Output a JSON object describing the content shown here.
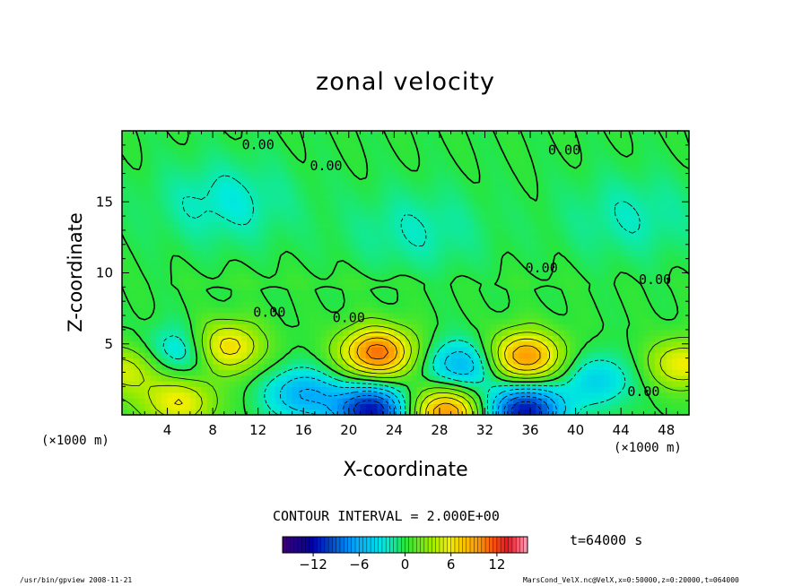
{
  "chart_data": {
    "type": "contour",
    "title": "zonal velocity",
    "xlabel": "X-coordinate",
    "ylabel": "Z-coordinate",
    "x_unit_label": "(×1000 m)",
    "xlim": [
      0,
      50
    ],
    "ylim": [
      0,
      20
    ],
    "x_ticks": [
      4,
      8,
      12,
      16,
      20,
      24,
      28,
      32,
      36,
      40,
      44,
      48
    ],
    "y_ticks": [
      5,
      10,
      15
    ],
    "contour_labels": [
      {
        "x": 12,
        "z": 19.0,
        "text": "0.00"
      },
      {
        "x": 18,
        "z": 17.5,
        "text": "0.00"
      },
      {
        "x": 39,
        "z": 18.6,
        "text": "0.00"
      },
      {
        "x": 37,
        "z": 10.3,
        "text": "0.00"
      },
      {
        "x": 47,
        "z": 9.5,
        "text": "0.00"
      },
      {
        "x": 13,
        "z": 7.2,
        "text": "0.00"
      },
      {
        "x": 20,
        "z": 6.8,
        "text": "0.00"
      },
      {
        "x": 46,
        "z": 1.6,
        "text": "0.00"
      }
    ],
    "contour_interval_label": "CONTOUR INTERVAL = 2.000E+00",
    "colorbar": {
      "range": [
        -16,
        16
      ],
      "tick_values": [
        -12,
        -6,
        0,
        6,
        12
      ],
      "tick_labels": [
        "−12",
        "−6",
        "0",
        "6",
        "12"
      ]
    },
    "features": [
      {
        "sign": "positive",
        "x": 9,
        "z": 4.8,
        "peak": 8
      },
      {
        "sign": "positive",
        "x": 22.5,
        "z": 4.4,
        "peak": 11
      },
      {
        "sign": "positive",
        "x": 35.5,
        "z": 4.1,
        "peak": 10
      },
      {
        "sign": "positive",
        "x": 5,
        "z": 0.9,
        "peak": 6
      },
      {
        "sign": "positive",
        "x": 28.5,
        "z": 0.2,
        "peak": 10
      },
      {
        "sign": "positive",
        "x": 49.5,
        "z": 3.6,
        "peak": 6
      },
      {
        "sign": "positive",
        "x": 0.3,
        "z": 3.2,
        "peak": 5
      },
      {
        "sign": "negative",
        "x": 22,
        "z": 0.3,
        "peak": -12
      },
      {
        "sign": "negative",
        "x": 35.5,
        "z": 0.3,
        "peak": -12
      },
      {
        "sign": "negative",
        "x": 16,
        "z": 1.5,
        "peak": -6
      },
      {
        "sign": "negative",
        "x": 5.5,
        "z": 4.5,
        "peak": -5
      },
      {
        "sign": "negative",
        "x": 30,
        "z": 3.5,
        "peak": -6
      },
      {
        "sign": "negative",
        "x": 42,
        "z": 2.5,
        "peak": -4
      },
      {
        "sign": "negative",
        "x": 9,
        "z": 15,
        "peak": -2.5
      },
      {
        "sign": "negative",
        "x": 26,
        "z": 13,
        "peak": -2
      },
      {
        "sign": "negative",
        "x": 45,
        "z": 14,
        "peak": -2
      }
    ]
  },
  "time_label": "t=64000  s",
  "footer": {
    "left": "/usr/bin/gpview  2008-11-21",
    "right": "MarsCond_VelX.nc@VelX,x=0:50000,z=0:20000,t=064000"
  }
}
